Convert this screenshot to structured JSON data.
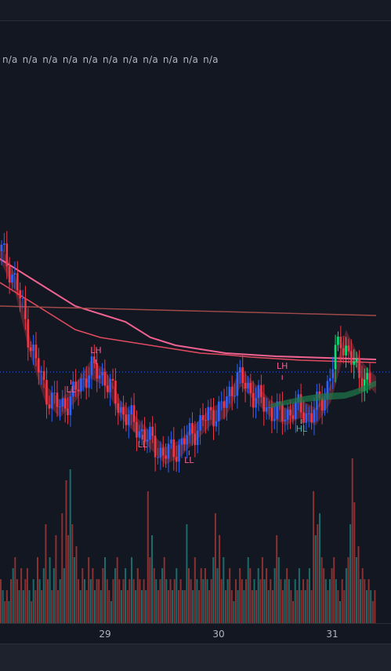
{
  "indicator_values": [
    "n/a",
    "n/a",
    "n/a",
    "n/a",
    "n/a",
    "n/a",
    "n/a",
    "n/a",
    "n/a",
    "n/a",
    "n/a"
  ],
  "colors": {
    "background": "#131722",
    "candle_up": "#2962ff",
    "candle_down": "#f23645",
    "candle_up_alt": "#26c6da",
    "candle_green": "#00e676",
    "ma_pink": "#f06292",
    "ma_red": "#e04a5f",
    "ma_brown": "#a14a4a",
    "band_fill": "#8b2f3c",
    "band_green": "#1f7a4a",
    "vol_up": "#1b6b6b",
    "vol_down": "#8a3131",
    "label_pink": "#f06292",
    "label_teal": "#4db6ac",
    "price_line": "#2962ff"
  },
  "chart_data": {
    "type": "line",
    "x_axis": {
      "ticks": [
        "29",
        "30",
        "31"
      ]
    },
    "pivot_labels": [
      {
        "text": "LH",
        "x": 28.92,
        "y": 0.57
      },
      {
        "text": "LL",
        "x": 28.7,
        "y": 0.52
      },
      {
        "text": "LL",
        "x": 29.33,
        "y": 0.45
      },
      {
        "text": "LL",
        "x": 29.74,
        "y": 0.43
      },
      {
        "text": "LH",
        "x": 30.56,
        "y": 0.55
      },
      {
        "text": "HL",
        "x": 30.73,
        "y": 0.47
      }
    ],
    "series": [
      {
        "values": [
          0.7,
          0.66,
          0.58,
          0.52,
          0.5,
          0.52,
          0.55,
          0.54,
          0.5,
          0.48,
          0.46,
          0.44,
          0.45,
          0.47,
          0.49,
          0.5,
          0.54,
          0.52,
          0.5,
          0.49,
          0.5,
          0.49,
          0.52,
          0.59,
          0.55,
          0.53
        ]
      },
      {
        "values": [
          0.66,
          0.64,
          0.62,
          0.6,
          0.59,
          0.585,
          0.58,
          0.575,
          0.57,
          0.568,
          0.565,
          0.563,
          0.561,
          0.56,
          0.559,
          0.558
        ]
      },
      {
        "values": [
          0.69,
          0.67,
          0.65,
          0.63,
          0.62,
          0.61,
          0.59,
          0.58,
          0.575,
          0.57,
          0.568,
          0.566,
          0.565,
          0.564,
          0.563,
          0.562
        ]
      },
      {
        "values": [
          0.63,
          0.628,
          0.626,
          0.624,
          0.622,
          0.62,
          0.618
        ]
      }
    ],
    "volume": [
      4,
      3,
      2,
      3,
      2,
      4,
      5,
      6,
      4,
      3,
      5,
      3,
      4,
      5,
      3,
      2,
      4,
      3,
      6,
      4,
      3,
      5,
      9,
      4,
      6,
      3,
      5,
      8,
      3,
      4,
      10,
      5,
      13,
      8,
      14,
      9,
      6,
      7,
      4,
      3,
      5,
      4,
      3,
      6,
      4,
      5,
      3,
      4,
      4,
      3,
      5,
      6,
      4,
      3,
      2,
      4,
      5,
      6,
      4,
      3,
      4,
      5,
      3,
      4,
      6,
      4,
      3,
      5,
      4,
      3,
      4,
      3,
      12,
      6,
      8,
      5,
      4,
      3,
      4,
      5,
      6,
      4,
      3,
      4,
      3,
      4,
      5,
      3,
      4,
      3,
      3,
      9,
      5,
      4,
      3,
      6,
      4,
      3,
      5,
      4,
      5,
      4,
      3,
      4,
      6,
      10,
      5,
      8,
      4,
      6,
      3,
      4,
      5,
      3,
      2,
      4,
      3,
      5,
      4,
      3,
      4,
      6,
      5,
      3,
      4,
      3,
      5,
      4,
      6,
      4,
      5,
      3,
      4,
      3,
      5,
      8,
      6,
      4,
      3,
      4,
      5,
      4,
      3,
      2,
      4,
      3,
      5,
      3,
      4,
      3,
      4,
      5,
      3,
      12,
      8,
      9,
      10,
      6,
      5,
      4,
      3,
      4,
      5,
      6,
      4,
      3,
      2,
      4,
      3,
      5,
      6,
      9,
      15,
      11,
      6,
      7,
      4,
      5,
      4,
      3,
      4,
      3,
      2,
      3
    ]
  }
}
